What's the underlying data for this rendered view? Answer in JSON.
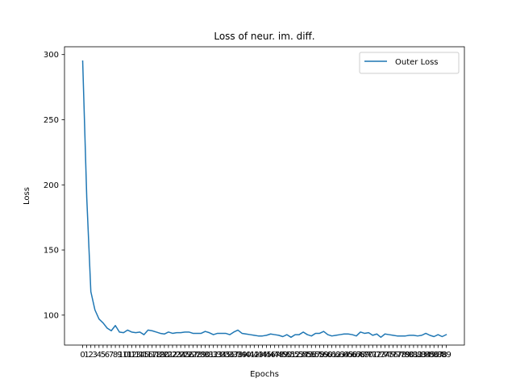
{
  "chart_data": {
    "type": "line",
    "title": "Loss of neur. im. diff.",
    "xlabel": "Epochs",
    "ylabel": "Loss",
    "xlim": [
      -4.45,
      93.45
    ],
    "ylim": [
      77,
      306
    ],
    "x_ticks": [
      0,
      1,
      2,
      3,
      4,
      5,
      6,
      7,
      8,
      9,
      10,
      11,
      12,
      13,
      14,
      15,
      16,
      17,
      18,
      19,
      20,
      21,
      22,
      23,
      24,
      25,
      26,
      27,
      28,
      29,
      30,
      31,
      32,
      33,
      34,
      35,
      36,
      37,
      38,
      39,
      40,
      41,
      42,
      43,
      44,
      45,
      46,
      47,
      48,
      49,
      50,
      51,
      52,
      53,
      54,
      55,
      56,
      57,
      58,
      59,
      60,
      61,
      62,
      63,
      64,
      65,
      66,
      67,
      68,
      69,
      70,
      71,
      72,
      73,
      74,
      75,
      76,
      77,
      78,
      79,
      80,
      81,
      82,
      83,
      84,
      85,
      86,
      87,
      88,
      89
    ],
    "y_ticks": [
      100,
      150,
      200,
      250,
      300
    ],
    "legend_position": "upper-right",
    "grid": false,
    "line_color": "#1f77b4",
    "series": [
      {
        "name": "Outer Loss",
        "x": [
          0,
          1,
          2,
          3,
          4,
          5,
          6,
          7,
          8,
          9,
          10,
          11,
          12,
          13,
          14,
          15,
          16,
          17,
          18,
          19,
          20,
          21,
          22,
          23,
          24,
          25,
          26,
          27,
          28,
          29,
          30,
          31,
          32,
          33,
          34,
          35,
          36,
          37,
          38,
          39,
          40,
          41,
          42,
          43,
          44,
          45,
          46,
          47,
          48,
          49,
          50,
          51,
          52,
          53,
          54,
          55,
          56,
          57,
          58,
          59,
          60,
          61,
          62,
          63,
          64,
          65,
          66,
          67,
          68,
          69,
          70,
          71,
          72,
          73,
          74,
          75,
          76,
          77,
          78,
          79,
          80,
          81,
          82,
          83,
          84,
          85,
          86,
          87,
          88,
          89
        ],
        "values": [
          295,
          190,
          118,
          104,
          97,
          94,
          90,
          88,
          92,
          87,
          86.5,
          88.5,
          87,
          86.5,
          87,
          85,
          88.5,
          88,
          87,
          86,
          85.5,
          87,
          86,
          86.5,
          86.5,
          87,
          87,
          86,
          86,
          86,
          87.5,
          86.5,
          85,
          86,
          86,
          86,
          85,
          87,
          88.5,
          86,
          85.5,
          85,
          84.5,
          84,
          84,
          84.5,
          85.5,
          85,
          84.5,
          83.5,
          85,
          83,
          85,
          85,
          87,
          85,
          84,
          86,
          86,
          87.5,
          85,
          84,
          84.5,
          85,
          85.5,
          85.5,
          85,
          84,
          87,
          86,
          86.5,
          84.5,
          85.5,
          83,
          85.5,
          85,
          84.5,
          84,
          84,
          84,
          84.5,
          84.5,
          84,
          84.5,
          86,
          84.5,
          83.5,
          85,
          83.5,
          85
        ]
      }
    ]
  }
}
